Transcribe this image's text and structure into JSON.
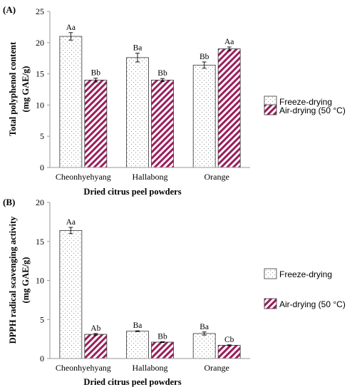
{
  "chart_data": [
    {
      "type": "bar",
      "panel_label": "(A)",
      "categories": [
        "Cheonhyehyang",
        "Hallabong",
        "Orange"
      ],
      "series": [
        {
          "name": "Freeze-drying",
          "values": [
            21.0,
            17.6,
            16.4
          ],
          "errors": [
            0.6,
            0.7,
            0.5
          ],
          "labels": [
            "Aa",
            "Ba",
            "Bb"
          ]
        },
        {
          "name": "Air-drying (50 °C)",
          "values": [
            14.0,
            14.0,
            19.0
          ],
          "errors": [
            0.3,
            0.25,
            0.3
          ],
          "labels": [
            "Bb",
            "Bb",
            "Aa"
          ]
        }
      ],
      "xlabel": "Dried citrus peel powders",
      "ylabel": [
        "Total polyphenol content",
        "(mg GAE/g)"
      ],
      "ylim": [
        0,
        25
      ],
      "yticks": [
        0,
        5,
        10,
        15,
        20,
        25
      ],
      "grid": false,
      "legend_position": "right"
    },
    {
      "type": "bar",
      "panel_label": "(B)",
      "categories": [
        "Cheonhyehyang",
        "Hallabong",
        "Orange"
      ],
      "series": [
        {
          "name": "Freeze-drying",
          "values": [
            16.4,
            3.5,
            3.2
          ],
          "errors": [
            0.4,
            0.05,
            0.2
          ],
          "labels": [
            "Aa",
            "Ba",
            "Ba"
          ]
        },
        {
          "name": "Air-drying (50 °C)",
          "values": [
            3.1,
            2.1,
            1.7
          ],
          "errors": [
            0.1,
            0.05,
            0.05
          ],
          "labels": [
            "Ab",
            "Bb",
            "Cb"
          ]
        }
      ],
      "xlabel": "Dried citrus peel powders",
      "ylabel": [
        "DPPH radical scavenging activity",
        "(mg GAE/g)"
      ],
      "ylim": [
        0,
        20
      ],
      "yticks": [
        0,
        5,
        10,
        15,
        20
      ],
      "grid": false,
      "legend_position": "right"
    }
  ],
  "colors": {
    "series_0_fill": "#ffffff",
    "series_0_dots": "#9a9a9a",
    "series_1_stripe": "#9b1d5c",
    "series_1_bg": "#ffffff",
    "axis": "#9a9a9a",
    "border": "#333333"
  }
}
